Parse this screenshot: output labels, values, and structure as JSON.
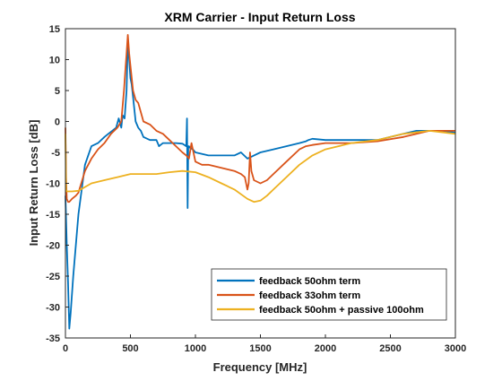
{
  "chart_data": {
    "type": "line",
    "title": "XRM Carrier - Input Return Loss",
    "xlabel": "Frequency [MHz]",
    "ylabel": "Input Return Loss [dB]",
    "xlim": [
      0,
      3000
    ],
    "ylim": [
      -35,
      15
    ],
    "xticks": [
      0,
      500,
      1000,
      1500,
      2000,
      2500,
      3000
    ],
    "yticks": [
      15,
      10,
      5,
      0,
      -5,
      -10,
      -15,
      -20,
      -25,
      -30,
      -35
    ],
    "grid": false,
    "legend_position": "bottom-right",
    "series": [
      {
        "name": "feedback 50ohm term",
        "color": "#0072BD",
        "x": [
          0,
          10,
          20,
          30,
          40,
          60,
          80,
          100,
          150,
          200,
          250,
          300,
          330,
          360,
          390,
          410,
          430,
          440,
          455,
          470,
          480,
          490,
          500,
          510,
          520,
          540,
          560,
          580,
          600,
          650,
          700,
          720,
          750,
          800,
          850,
          900,
          930,
          935,
          940,
          945,
          950,
          960,
          980,
          1000,
          1100,
          1200,
          1300,
          1350,
          1400,
          1450,
          1500,
          1600,
          1700,
          1800,
          1850,
          1870,
          1900,
          2000,
          2200,
          2400,
          2600,
          2700,
          2800,
          2900,
          3000
        ],
        "y": [
          -12,
          -20,
          -26,
          -33.5,
          -31,
          -25,
          -20,
          -15,
          -7,
          -4,
          -3.5,
          -2.5,
          -2,
          -1.5,
          -1,
          0.5,
          -1,
          1,
          0.5,
          5,
          13,
          10,
          7,
          6,
          4,
          0,
          -1,
          -1.5,
          -2.5,
          -3,
          -3,
          -4,
          -3.5,
          -3.5,
          -3.5,
          -3.6,
          -4,
          0.5,
          -14,
          -4,
          -4,
          -4.3,
          -4.5,
          -5,
          -5.5,
          -5.5,
          -5.5,
          -5,
          -6,
          -5.5,
          -5,
          -4.5,
          -4,
          -3.5,
          -3.2,
          -3,
          -2.8,
          -3,
          -3,
          -3,
          -2,
          -1.5,
          -1.5,
          -1.5,
          -1.8
        ]
      },
      {
        "name": "feedback 33ohm term",
        "color": "#D95319",
        "x": [
          0,
          5,
          10,
          20,
          30,
          50,
          80,
          100,
          150,
          200,
          250,
          300,
          350,
          400,
          430,
          450,
          460,
          470,
          480,
          490,
          500,
          520,
          540,
          560,
          600,
          650,
          700,
          750,
          800,
          850,
          900,
          930,
          950,
          970,
          1000,
          1050,
          1100,
          1200,
          1300,
          1350,
          1380,
          1400,
          1410,
          1420,
          1430,
          1450,
          1500,
          1550,
          1600,
          1700,
          1800,
          1850,
          1900,
          2000,
          2200,
          2400,
          2600,
          2800,
          3000
        ],
        "y": [
          -1,
          -9,
          -12.5,
          -13,
          -13,
          -12.5,
          -12,
          -11.5,
          -8,
          -6,
          -4.5,
          -3.5,
          -2,
          -1,
          0,
          5,
          8,
          11,
          14,
          11,
          9,
          5,
          3.5,
          3,
          0,
          -0.5,
          -1.5,
          -2,
          -3,
          -4,
          -5,
          -5.5,
          -6,
          -3.5,
          -6.5,
          -7,
          -7,
          -7.5,
          -8,
          -8.5,
          -9,
          -11,
          -10,
          -5,
          -8,
          -9.5,
          -10,
          -9.5,
          -8.5,
          -6.5,
          -4.5,
          -4,
          -3.8,
          -3.5,
          -3.5,
          -3.2,
          -2.5,
          -1.5,
          -1.5
        ]
      },
      {
        "name": "feedback 50ohm + passive 100ohm",
        "color": "#EDB120",
        "x": [
          0,
          5,
          10,
          50,
          100,
          200,
          300,
          400,
          500,
          600,
          700,
          800,
          900,
          1000,
          1100,
          1200,
          1300,
          1400,
          1450,
          1500,
          1550,
          1600,
          1700,
          1800,
          1900,
          2000,
          2200,
          2400,
          2600,
          2800,
          3000
        ],
        "y": [
          -2,
          -11,
          -11.3,
          -11.3,
          -11.2,
          -10,
          -9.5,
          -9,
          -8.5,
          -8.5,
          -8.5,
          -8.2,
          -8,
          -8.2,
          -9,
          -10,
          -11,
          -12.5,
          -13,
          -12.8,
          -12,
          -11,
          -9,
          -7,
          -5.5,
          -4.5,
          -3.5,
          -3,
          -2,
          -1.5,
          -2
        ]
      }
    ]
  }
}
